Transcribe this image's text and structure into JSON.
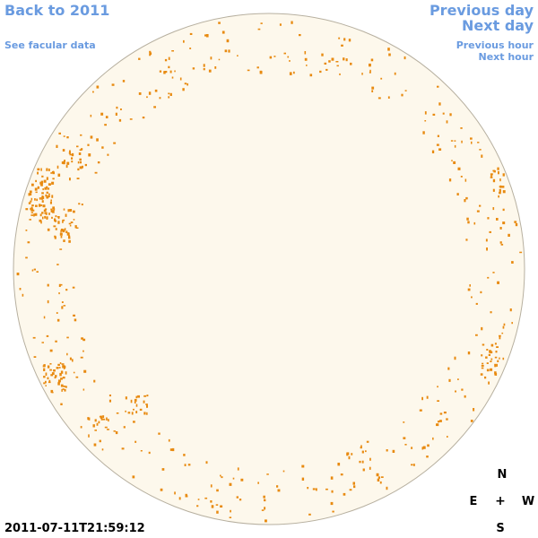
{
  "nav": {
    "back": "Back to 2011",
    "facular": "See facular data",
    "prev_day": "Previous day",
    "next_day": "Next day",
    "prev_hour": "Previous hour",
    "next_hour": "Next hour"
  },
  "compass": {
    "n": "N",
    "e": "E",
    "center": "+",
    "w": "W",
    "s": "S"
  },
  "timestamp": "2011-07-11T21:59:12",
  "colors": {
    "disk_fill": "#fdf8ec",
    "disk_stroke": "#b7b0a0",
    "spot": "#e88a10",
    "link": "#6a9be0"
  }
}
